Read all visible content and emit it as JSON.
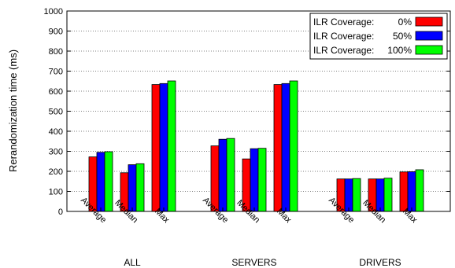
{
  "chart_data": {
    "type": "bar",
    "ylabel": "Rerandomization time (ms)",
    "ylim": [
      0,
      1000
    ],
    "yticks": [
      0,
      100,
      200,
      300,
      400,
      500,
      600,
      700,
      800,
      900,
      1000
    ],
    "grid": "horizontal dotted",
    "legend_position": "top-right",
    "groups": [
      {
        "label": "ALL",
        "categories": [
          "Average",
          "Median",
          "Max"
        ]
      },
      {
        "label": "SERVERS",
        "categories": [
          "Average",
          "Median",
          "Max"
        ]
      },
      {
        "label": "DRIVERS",
        "categories": [
          "Average",
          "Median",
          "Max"
        ]
      }
    ],
    "series": [
      {
        "legend_label": "ILR Coverage:",
        "legend_value": "0%",
        "color": "#ff0000",
        "values": [
          272,
          193,
          633,
          327,
          262,
          633,
          162,
          162,
          197
        ]
      },
      {
        "legend_label": "ILR Coverage:",
        "legend_value": "50%",
        "color": "#0000ff",
        "values": [
          295,
          233,
          638,
          360,
          313,
          638,
          162,
          162,
          198
        ]
      },
      {
        "legend_label": "ILR Coverage:",
        "legend_value": "100%",
        "color": "#00ff00",
        "values": [
          298,
          238,
          651,
          364,
          315,
          651,
          164,
          166,
          208
        ]
      }
    ]
  }
}
